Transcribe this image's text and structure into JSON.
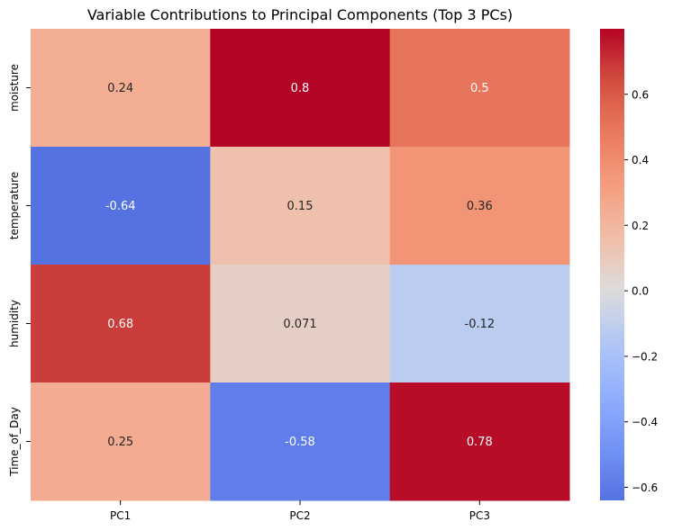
{
  "chart_data": {
    "type": "heatmap",
    "title": "Variable Contributions to Principal Components (Top 3 PCs)",
    "xlabel": "",
    "ylabel": "",
    "columns": [
      "PC1",
      "PC2",
      "PC3"
    ],
    "rows": [
      "moisture",
      "temperature",
      "humidity",
      "Time_of_Day"
    ],
    "values": [
      [
        0.24,
        0.8,
        0.5
      ],
      [
        -0.64,
        0.15,
        0.36
      ],
      [
        0.68,
        0.071,
        -0.12
      ],
      [
        0.25,
        -0.58,
        0.78
      ]
    ],
    "value_labels": [
      [
        "0.24",
        "0.8",
        "0.5"
      ],
      [
        "-0.64",
        "0.15",
        "0.36"
      ],
      [
        "0.68",
        "0.071",
        "-0.12"
      ],
      [
        "0.25",
        "-0.58",
        "0.78"
      ]
    ],
    "colormap": "coolwarm",
    "colorbar": {
      "range": [
        -0.64,
        0.8
      ],
      "center": 0,
      "ticks": [
        0.6,
        0.4,
        0.2,
        0.0,
        -0.2,
        -0.4,
        -0.6
      ],
      "tick_labels": [
        "0.6",
        "0.4",
        "0.2",
        "0.0",
        "−0.2",
        "−0.4",
        "−0.6"
      ]
    },
    "annotations": true,
    "grid": false
  }
}
